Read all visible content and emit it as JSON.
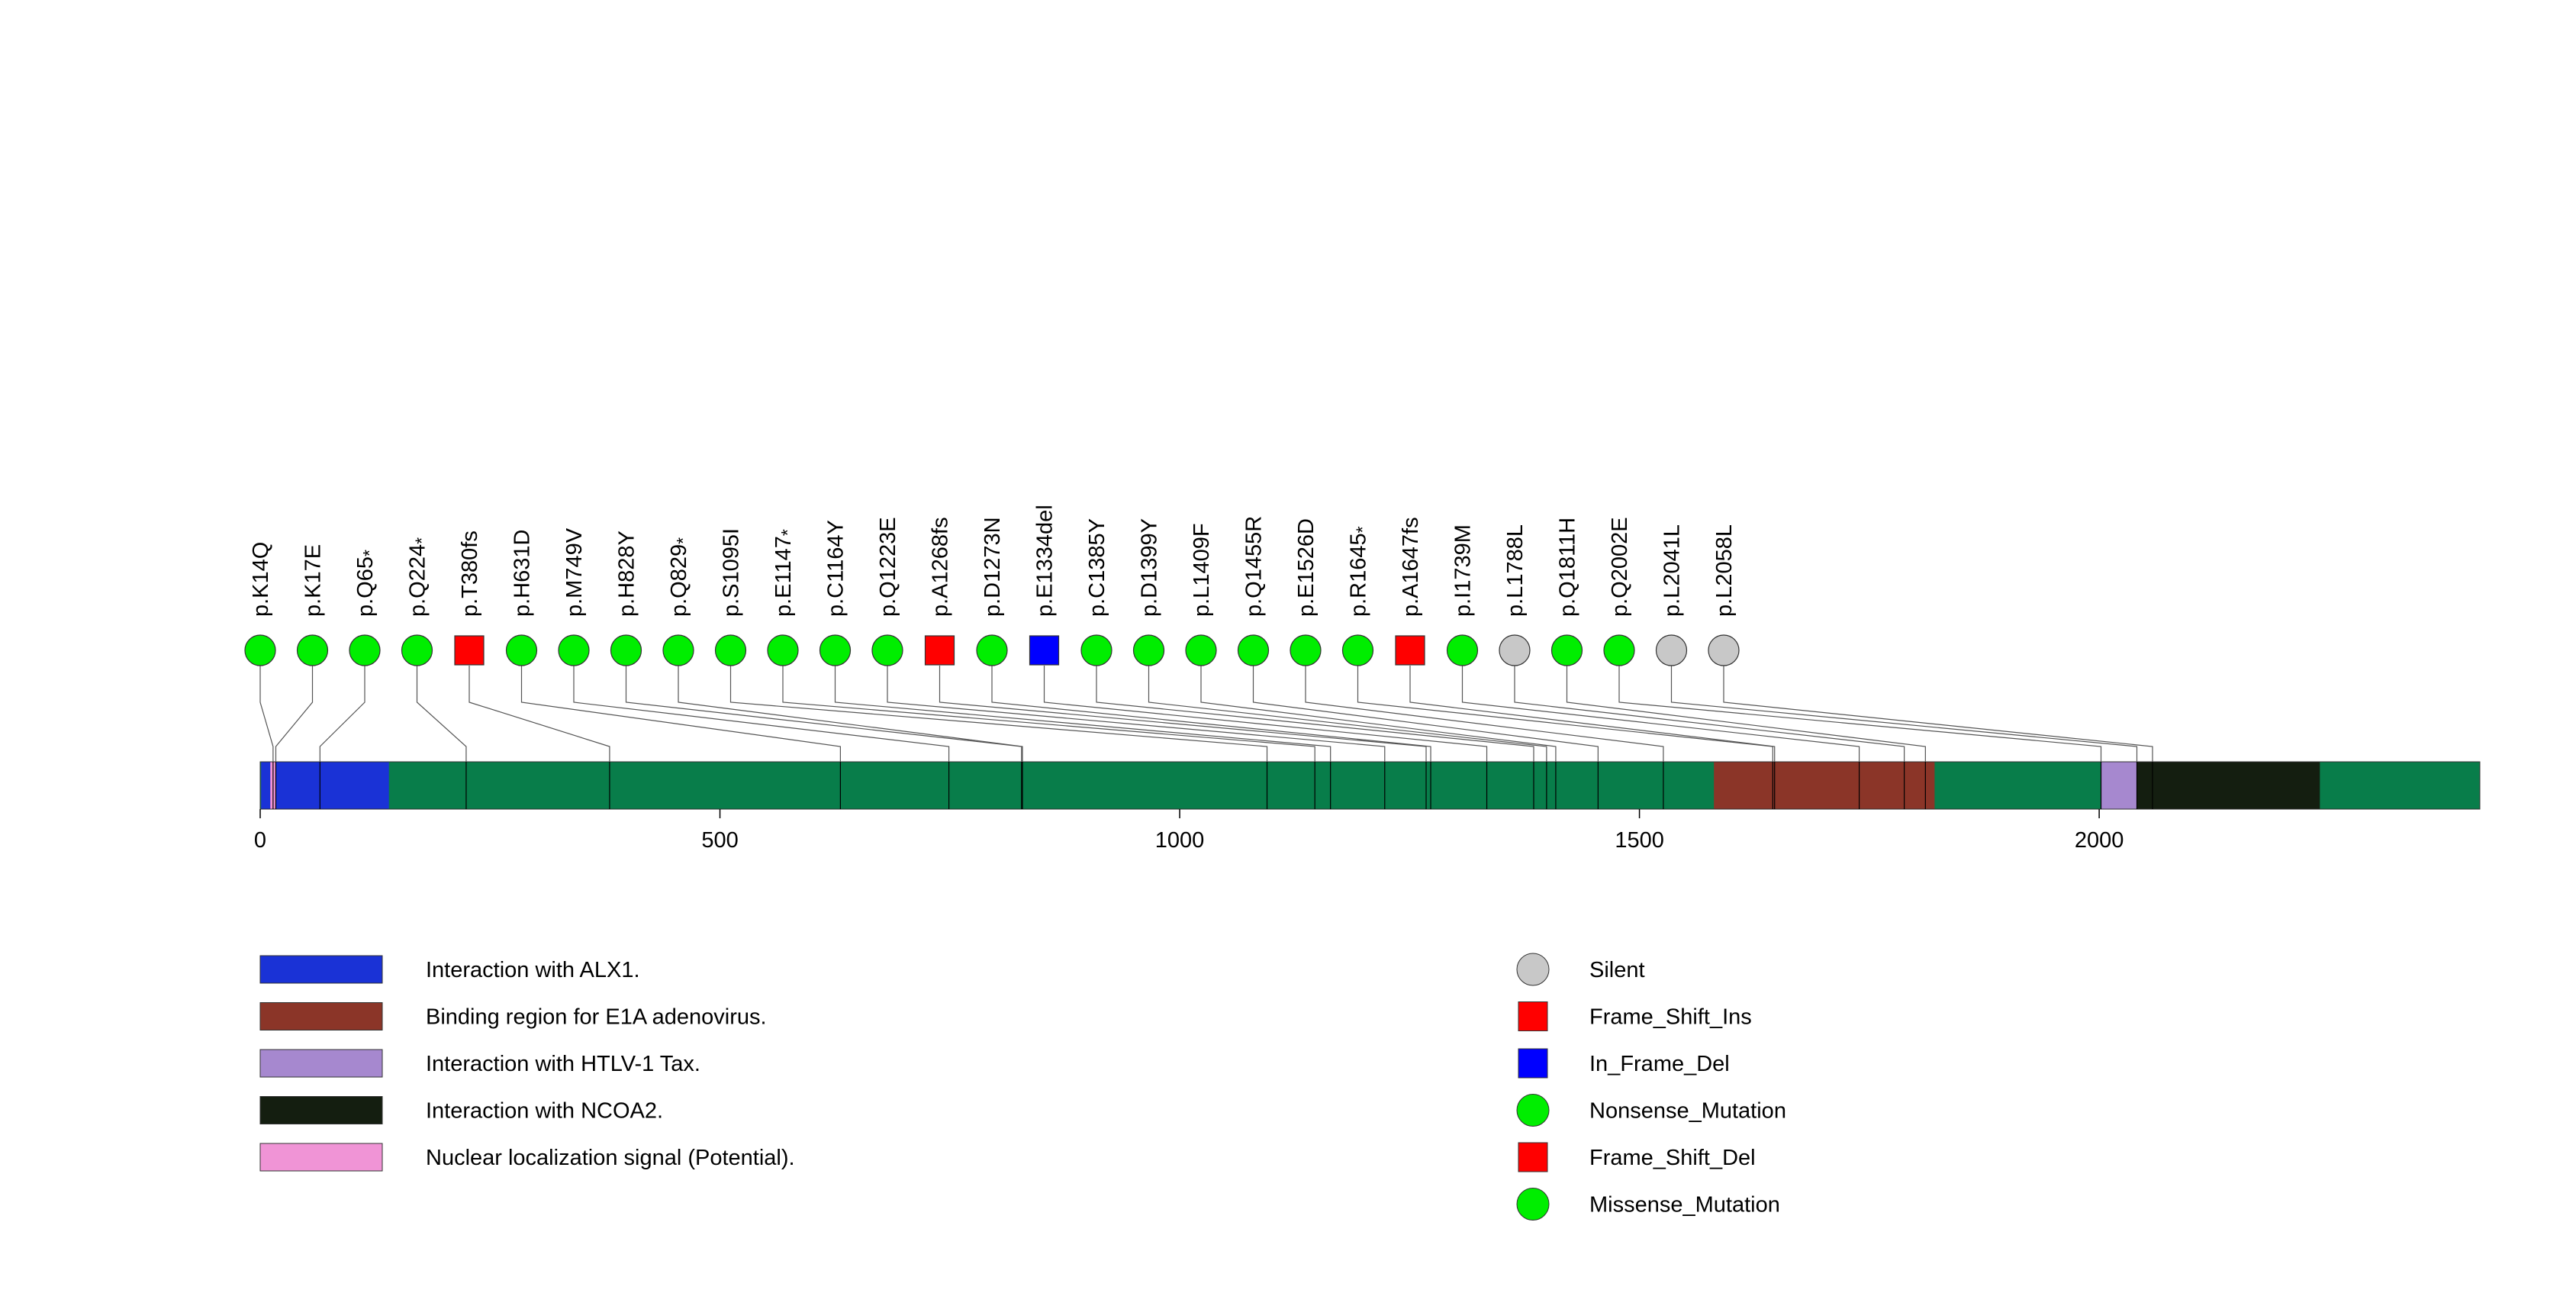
{
  "chart_data": {
    "type": "lollipop",
    "protein_length": 2414,
    "xlim": [
      0,
      2414
    ],
    "x_ticks": [
      0,
      500,
      1000,
      1500,
      2000
    ],
    "backbone_color": "#087d4a",
    "domains": [
      {
        "name": "Interaction with ALX1.",
        "start": 1,
        "end": 140,
        "color": "#1a32d6"
      },
      {
        "name": "Binding region for E1A adenovirus.",
        "start": 1581,
        "end": 1821,
        "color": "#8b3528"
      },
      {
        "name": "Interaction with HTLV-1 Tax.",
        "start": 2002,
        "end": 2041,
        "color": "#a688cf"
      },
      {
        "name": "Interaction with NCOA2.",
        "start": 2041,
        "end": 2240,
        "color": "#141e10"
      },
      {
        "name": "Nuclear localization signal (Potential).",
        "start": 11,
        "end": 17,
        "color": "#f094d6"
      }
    ],
    "mutations": [
      {
        "label": "p.K14Q",
        "pos": 14,
        "type": "Missense_Mutation",
        "star": false
      },
      {
        "label": "p.K17E",
        "pos": 17,
        "type": "Missense_Mutation",
        "star": false
      },
      {
        "label": "p.Q65",
        "pos": 65,
        "type": "Nonsense_Mutation",
        "star": true
      },
      {
        "label": "p.Q224",
        "pos": 224,
        "type": "Nonsense_Mutation",
        "star": true
      },
      {
        "label": "p.T380fs",
        "pos": 380,
        "type": "Frame_Shift_Del",
        "star": false
      },
      {
        "label": "p.H631D",
        "pos": 631,
        "type": "Missense_Mutation",
        "star": false
      },
      {
        "label": "p.M749V",
        "pos": 749,
        "type": "Missense_Mutation",
        "star": false
      },
      {
        "label": "p.H828Y",
        "pos": 828,
        "type": "Missense_Mutation",
        "star": false
      },
      {
        "label": "p.Q829",
        "pos": 829,
        "type": "Nonsense_Mutation",
        "star": true
      },
      {
        "label": "p.S1095I",
        "pos": 1095,
        "type": "Missense_Mutation",
        "star": false
      },
      {
        "label": "p.E1147",
        "pos": 1147,
        "type": "Nonsense_Mutation",
        "star": true
      },
      {
        "label": "p.C1164Y",
        "pos": 1164,
        "type": "Missense_Mutation",
        "star": false
      },
      {
        "label": "p.Q1223E",
        "pos": 1223,
        "type": "Missense_Mutation",
        "star": false
      },
      {
        "label": "p.A1268fs",
        "pos": 1268,
        "type": "Frame_Shift_Del",
        "star": false
      },
      {
        "label": "p.D1273N",
        "pos": 1273,
        "type": "Missense_Mutation",
        "star": false
      },
      {
        "label": "p.E1334del",
        "pos": 1334,
        "type": "In_Frame_Del",
        "star": false
      },
      {
        "label": "p.C1385Y",
        "pos": 1385,
        "type": "Missense_Mutation",
        "star": false
      },
      {
        "label": "p.D1399Y",
        "pos": 1399,
        "type": "Missense_Mutation",
        "star": false
      },
      {
        "label": "p.L1409F",
        "pos": 1409,
        "type": "Missense_Mutation",
        "star": false
      },
      {
        "label": "p.Q1455R",
        "pos": 1455,
        "type": "Missense_Mutation",
        "star": false
      },
      {
        "label": "p.E1526D",
        "pos": 1526,
        "type": "Missense_Mutation",
        "star": false
      },
      {
        "label": "p.R1645",
        "pos": 1645,
        "type": "Nonsense_Mutation",
        "star": true
      },
      {
        "label": "p.A1647fs",
        "pos": 1647,
        "type": "Frame_Shift_Ins",
        "star": false
      },
      {
        "label": "p.I1739M",
        "pos": 1739,
        "type": "Missense_Mutation",
        "star": false
      },
      {
        "label": "p.L1788L",
        "pos": 1788,
        "type": "Silent",
        "star": false
      },
      {
        "label": "p.Q1811H",
        "pos": 1811,
        "type": "Missense_Mutation",
        "star": false
      },
      {
        "label": "p.Q2002E",
        "pos": 2002,
        "type": "Missense_Mutation",
        "star": false
      },
      {
        "label": "p.L2041L",
        "pos": 2041,
        "type": "Silent",
        "star": false
      },
      {
        "label": "p.L2058L",
        "pos": 2058,
        "type": "Silent",
        "star": false
      }
    ],
    "mutation_legend": [
      {
        "label": "Silent",
        "shape": "circle",
        "color": "#c8c8c8"
      },
      {
        "label": "Frame_Shift_Ins",
        "shape": "square",
        "color": "#ff0000"
      },
      {
        "label": "In_Frame_Del",
        "shape": "square",
        "color": "#0000ff"
      },
      {
        "label": "Nonsense_Mutation",
        "shape": "circle",
        "color": "#00ee00"
      },
      {
        "label": "Frame_Shift_Del",
        "shape": "square",
        "color": "#ff0000"
      },
      {
        "label": "Missense_Mutation",
        "shape": "circle",
        "color": "#00ee00"
      }
    ]
  }
}
